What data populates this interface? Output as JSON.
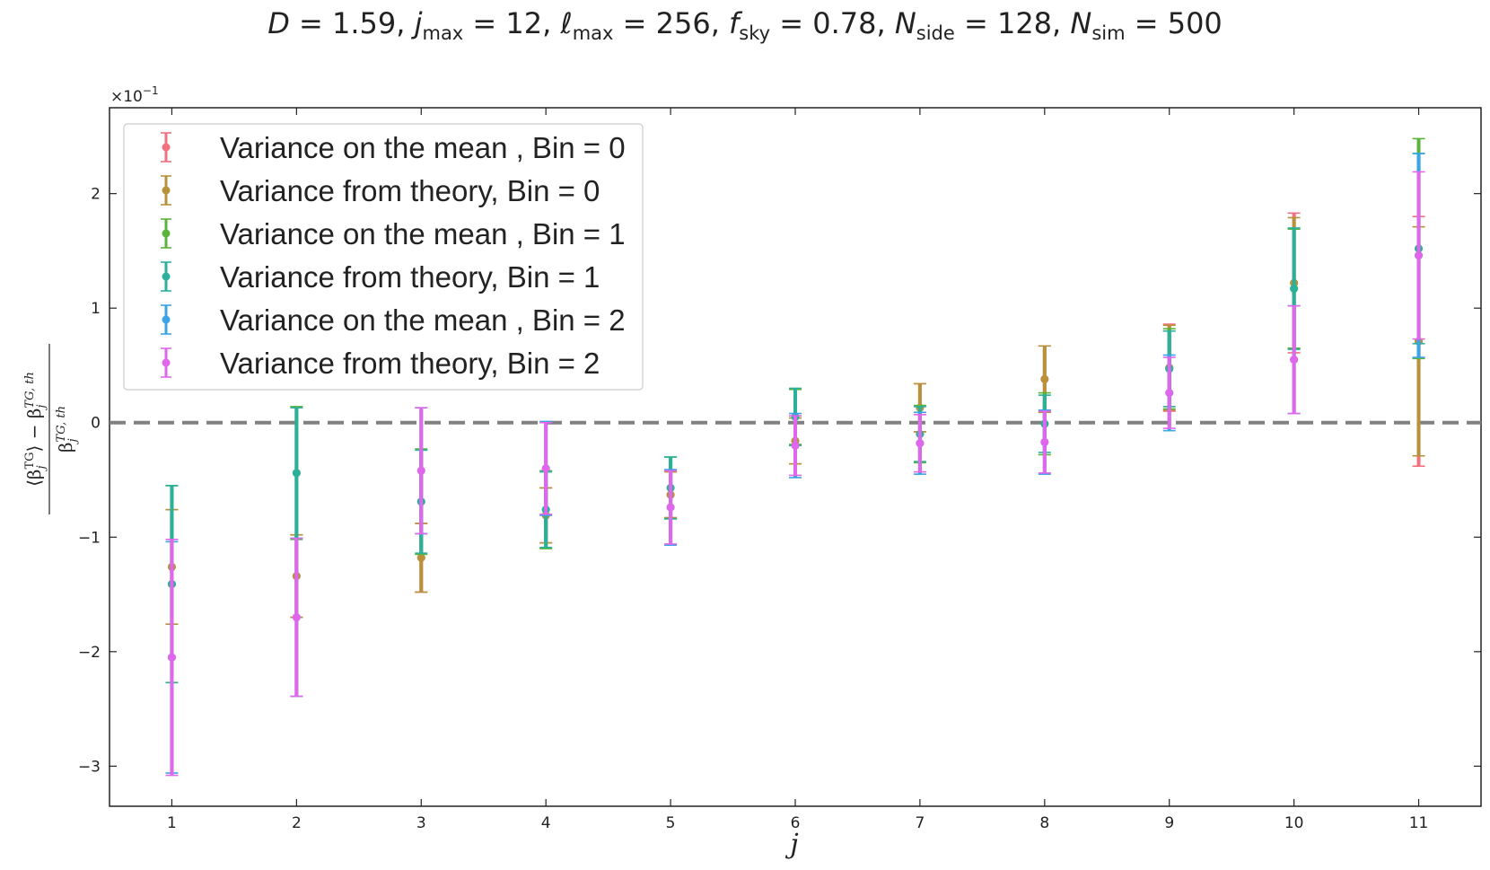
{
  "chart_data": {
    "type": "scatter",
    "title": "D = 1.59,  j_max = 12,  ℓ_max = 256, f_sky = 0.78,  N_side = 128, N_sim = 500",
    "title_parts": {
      "D": "D",
      "D_val": " = 1.59,  ",
      "j": "j",
      "j_sub": "max",
      "j_val": " = 12,  ",
      "l": "ℓ",
      "l_sub": "max",
      "l_val": " = 256, ",
      "f": "f",
      "f_sub": "sky",
      "f_val": " = 0.78,  ",
      "N1": "N",
      "N1_sub": "side",
      "N1_val": " = 128, ",
      "N2": "N",
      "N2_sub": "sim",
      "N2_val": " = 500"
    },
    "xlabel": "j",
    "ylabel_num": "⟨β_j^TG⟩ − β_j^TG, th",
    "ylabel_den": "β_j^TG, th",
    "ylabel_parts": {
      "num_open": "⟨β",
      "num_j": "j",
      "num_TG": "TG",
      "num_close": "⟩ − β",
      "num_j2": "j",
      "num_TG2": "TG, th",
      "den_beta": "β",
      "den_j": "j",
      "den_TG": "TG, th"
    },
    "y_offset_label": "×10",
    "y_offset_exp": "−1",
    "x": [
      1,
      2,
      3,
      4,
      5,
      6,
      7,
      8,
      9,
      10,
      11
    ],
    "xlim": [
      0.5,
      11.5
    ],
    "ylim": [
      -3.35,
      2.75
    ],
    "yticks": [
      -3,
      -2,
      -1,
      0,
      1,
      2
    ],
    "ytick_labels": [
      "−3",
      "−2",
      "−1",
      "0",
      "1",
      "2"
    ],
    "reference_line": 0,
    "grid": false,
    "legend_position": "top-left",
    "series": [
      {
        "name": "Variance on the mean , Bin = 0",
        "color": "#f2707f",
        "y": [
          -1.26,
          -1.34,
          -1.18,
          -0.81,
          -0.63,
          -0.16,
          0.13,
          0.38,
          0.48,
          1.22,
          0.71
        ],
        "err": [
          0.5,
          0.36,
          0.3,
          0.24,
          0.2,
          0.2,
          0.21,
          0.29,
          0.38,
          0.61,
          1.09
        ]
      },
      {
        "name": "Variance from theory, Bin = 0",
        "color": "#b8923b",
        "y": [
          -1.26,
          -1.34,
          -1.18,
          -0.81,
          -0.63,
          -0.16,
          0.13,
          0.38,
          0.48,
          1.22,
          0.71
        ],
        "err": [
          0.5,
          0.36,
          0.3,
          0.24,
          0.2,
          0.2,
          0.21,
          0.29,
          0.37,
          0.57,
          1.0
        ]
      },
      {
        "name": "Variance on the mean , Bin = 1",
        "color": "#59b33c",
        "y": [
          -1.41,
          -0.44,
          -0.69,
          -0.76,
          -0.57,
          0.05,
          -0.1,
          -0.01,
          0.47,
          1.17,
          1.52
        ],
        "err": [
          0.86,
          0.58,
          0.46,
          0.34,
          0.27,
          0.24,
          0.25,
          0.27,
          0.35,
          0.52,
          0.96
        ]
      },
      {
        "name": "Variance from theory, Bin = 1",
        "color": "#2ab09b",
        "y": [
          -1.41,
          -0.44,
          -0.69,
          -0.76,
          -0.57,
          0.05,
          -0.1,
          -0.01,
          0.47,
          1.17,
          1.52
        ],
        "err": [
          0.86,
          0.57,
          0.45,
          0.33,
          0.27,
          0.25,
          0.24,
          0.25,
          0.33,
          0.53,
          0.83
        ]
      },
      {
        "name": "Variance on the mean , Bin = 2",
        "color": "#3ba3e6",
        "y": [
          -2.05,
          -1.7,
          -0.42,
          -0.4,
          -0.74,
          -0.2,
          -0.18,
          -0.17,
          0.26,
          0.55,
          1.46
        ],
        "err": [
          1.01,
          0.69,
          0.55,
          0.41,
          0.33,
          0.28,
          0.27,
          0.28,
          0.33,
          0.47,
          0.89
        ]
      },
      {
        "name": "Variance from theory, Bin = 2",
        "color": "#e066ec",
        "y": [
          -2.05,
          -1.7,
          -0.42,
          -0.4,
          -0.74,
          -0.2,
          -0.18,
          -0.17,
          0.26,
          0.55,
          1.46
        ],
        "err": [
          1.03,
          0.69,
          0.55,
          0.4,
          0.32,
          0.26,
          0.25,
          0.27,
          0.31,
          0.47,
          0.73
        ]
      }
    ]
  }
}
